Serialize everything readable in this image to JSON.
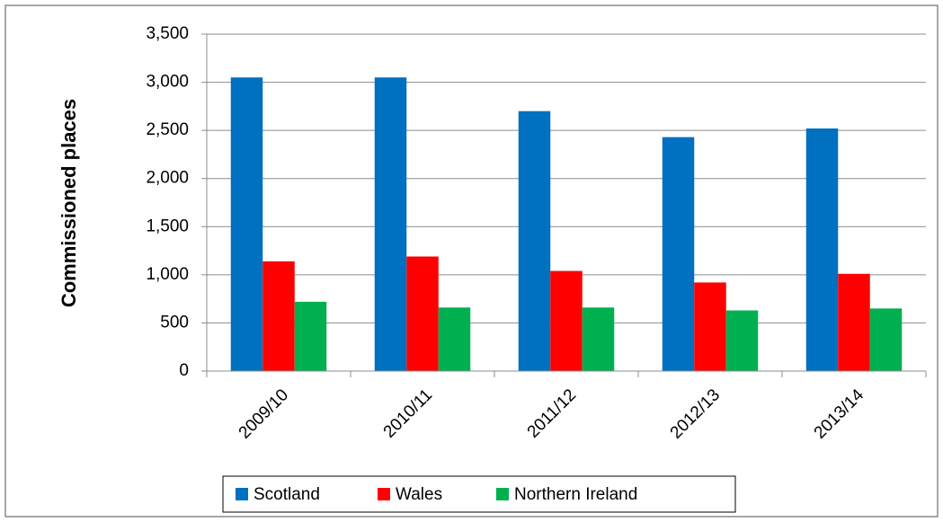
{
  "chart_data": {
    "type": "bar",
    "y_label": "Commissioned places",
    "categories": [
      "2009/10",
      "2010/11",
      "2011/12",
      "2012/13",
      "2013/14"
    ],
    "series": [
      {
        "name": "Scotland",
        "color": "#0070c0",
        "values": [
          3050,
          3050,
          2700,
          2430,
          2520
        ]
      },
      {
        "name": "Wales",
        "color": "#ff0000",
        "values": [
          1140,
          1190,
          1040,
          920,
          1010
        ]
      },
      {
        "name": "Northern Ireland",
        "color": "#00b050",
        "values": [
          720,
          660,
          660,
          630,
          650
        ]
      }
    ],
    "ylim": [
      0,
      3500
    ],
    "yticks": [
      0,
      500,
      {
        "value": 1000,
        "label": "1,000"
      },
      {
        "value": 1500,
        "label": "1,500"
      },
      {
        "value": 2000,
        "label": "2,000"
      },
      {
        "value": 2500,
        "label": "2,500"
      },
      {
        "value": 3000,
        "label": "3,000"
      },
      {
        "value": 3500,
        "label": "3,500"
      }
    ],
    "grid": true,
    "legend": "bottom"
  }
}
